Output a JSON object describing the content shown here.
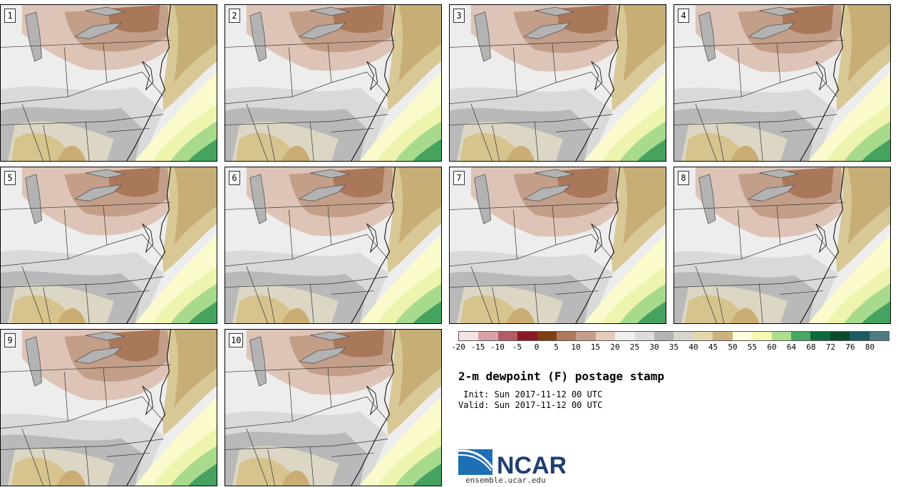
{
  "panels": [
    {
      "label": "1"
    },
    {
      "label": "2"
    },
    {
      "label": "3"
    },
    {
      "label": "4"
    },
    {
      "label": "5"
    },
    {
      "label": "6"
    },
    {
      "label": "7"
    },
    {
      "label": "8"
    },
    {
      "label": "9"
    },
    {
      "label": "10"
    }
  ],
  "colorbar": {
    "colors": [
      "#f3e3e4",
      "#d9a3a7",
      "#b15b63",
      "#8b1a24",
      "#7f3f14",
      "#ae7a5b",
      "#c69f8a",
      "#e4cbbd",
      "#efefef",
      "#dcdcdc",
      "#b4b4b4",
      "#d7d6cc",
      "#e3d7ae",
      "#cbb37b",
      "#fdfde0",
      "#f4f7b2",
      "#aedd8e",
      "#48a862",
      "#0c6b3a",
      "#0b4a2b",
      "#1d5b65",
      "#4f7a82"
    ],
    "ticks": [
      "-20",
      "-15",
      "-10",
      "-5",
      "0",
      "5",
      "10",
      "15",
      "20",
      "25",
      "30",
      "35",
      "40",
      "45",
      "50",
      "55",
      "60",
      "64",
      "68",
      "72",
      "76",
      "80"
    ]
  },
  "title": "2-m dewpoint (F) postage stamp",
  "init": " Init: Sun 2017-11-12 00 UTC",
  "valid": "Valid: Sun 2017-11-12 00 UTC",
  "logo_text": "NCAR",
  "site": "ensemble.ucar.edu"
}
